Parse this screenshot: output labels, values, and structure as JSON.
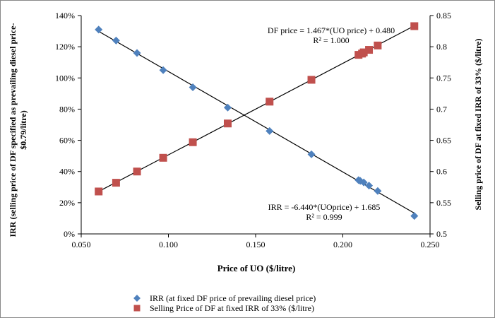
{
  "chart_data": {
    "type": "scatter",
    "xlabel": "Price of UO ($/litre)",
    "ylabel_left": "IRR (selling price of DF specified as prevailing diesel price-\n$0.79/litre)",
    "ylabel_right": "Selling price of DF at fixed IRR of 33% ($/litre)",
    "xlim": [
      0.05,
      0.25
    ],
    "ylim_left": [
      0,
      1.4
    ],
    "ylim_right": [
      0.5,
      0.85
    ],
    "x_ticks": [
      "0.050",
      "0.100",
      "0.150",
      "0.200",
      "0.250"
    ],
    "y_left_ticks": [
      "0%",
      "20%",
      "40%",
      "60%",
      "80%",
      "100%",
      "120%",
      "140%"
    ],
    "y_right_ticks": [
      "0.5",
      "0.55",
      "0.6",
      "0.65",
      "0.7",
      "0.75",
      "0.8",
      "0.85"
    ],
    "grid": false,
    "legend_position": "bottom",
    "series": [
      {
        "name": "IRR (at fixed DF price of prevailing diesel price)",
        "axis": "left",
        "marker": "diamond",
        "color": "#4f81bd",
        "x": [
          0.06,
          0.07,
          0.082,
          0.097,
          0.114,
          0.134,
          0.158,
          0.182,
          0.209,
          0.21,
          0.212,
          0.215,
          0.22,
          0.241
        ],
        "y": [
          1.31,
          1.24,
          1.16,
          1.05,
          0.94,
          0.81,
          0.66,
          0.51,
          0.345,
          0.34,
          0.33,
          0.31,
          0.275,
          0.115
        ],
        "trendline": {
          "slope": -6.44,
          "intercept": 1.685
        }
      },
      {
        "name": "Selling Price of DF at fixed IRR of 33% ($/litre)",
        "axis": "right",
        "marker": "square",
        "color": "#c0504d",
        "x": [
          0.06,
          0.07,
          0.082,
          0.097,
          0.114,
          0.134,
          0.158,
          0.182,
          0.209,
          0.211,
          0.212,
          0.215,
          0.22,
          0.241
        ],
        "y": [
          0.568,
          0.582,
          0.6,
          0.622,
          0.647,
          0.677,
          0.712,
          0.747,
          0.787,
          0.789,
          0.791,
          0.795,
          0.802,
          0.833
        ],
        "trendline": {
          "slope": 1.467,
          "intercept": 0.48
        }
      }
    ],
    "annotations": [
      {
        "eq": "DF price = 1.467*(UO price) + 0.480",
        "r2": "R² = 1.000"
      },
      {
        "eq": "IRR = -6.440*(UOprice) + 1.685",
        "r2": "R² = 0.999"
      }
    ]
  }
}
